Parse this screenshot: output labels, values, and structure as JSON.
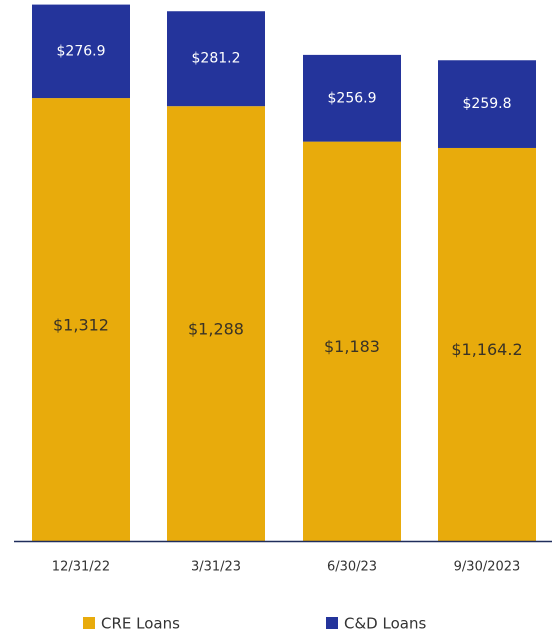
{
  "chart_data": {
    "type": "bar",
    "stacked": true,
    "categories": [
      "12/31/22",
      "3/31/23",
      "6/30/23",
      "9/30/2023"
    ],
    "series": [
      {
        "name": "CRE Loans",
        "values": [
          1312,
          1288,
          1183,
          1164.2
        ],
        "labels": [
          "$1,312",
          "$1,288",
          "$1,183",
          "$1,164.2"
        ],
        "color": "#e8ab0c"
      },
      {
        "name": "C&D Loans",
        "values": [
          276.9,
          281.2,
          256.9,
          259.8
        ],
        "labels": [
          "$276.9",
          "$281.2",
          "$256.9",
          "$259.8"
        ],
        "color": "#24349b"
      }
    ],
    "axis_color": "#1f2d5c",
    "legend_position": "bottom",
    "grid": false
  }
}
